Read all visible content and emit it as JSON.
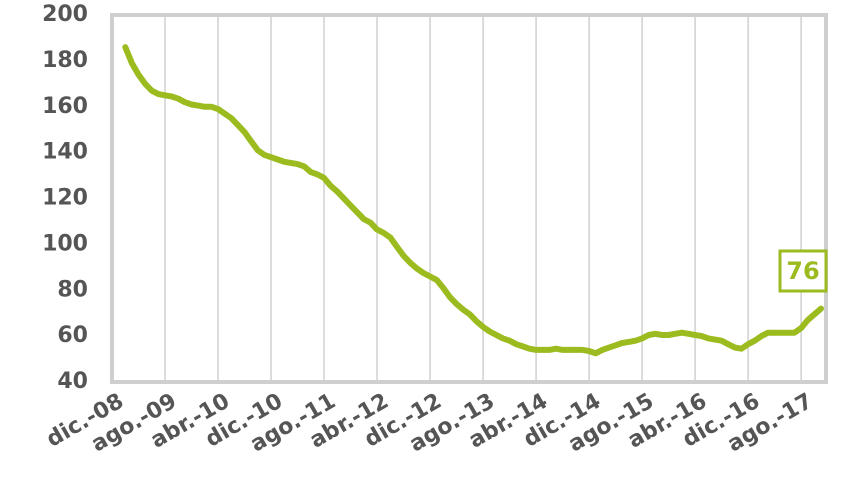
{
  "chart_data": {
    "type": "line",
    "categories": [
      "dic.-08",
      null,
      null,
      null,
      null,
      null,
      null,
      null,
      "ago.-09",
      null,
      null,
      null,
      null,
      null,
      null,
      null,
      "abr.-10",
      null,
      null,
      null,
      null,
      null,
      null,
      null,
      "dic.-10",
      null,
      null,
      null,
      null,
      null,
      null,
      null,
      "ago.-11",
      null,
      null,
      null,
      null,
      null,
      null,
      null,
      "abr.-12",
      null,
      null,
      null,
      null,
      null,
      null,
      null,
      "dic.-12",
      null,
      null,
      null,
      null,
      null,
      null,
      null,
      "ago.-13",
      null,
      null,
      null,
      null,
      null,
      null,
      null,
      "abr.-14",
      null,
      null,
      null,
      null,
      null,
      null,
      null,
      "dic.-14",
      null,
      null,
      null,
      null,
      null,
      null,
      null,
      "ago.-15",
      null,
      null,
      null,
      null,
      null,
      null,
      null,
      "abr.-16",
      null,
      null,
      null,
      null,
      null,
      null,
      null,
      "dic.-16",
      null,
      null,
      null,
      null,
      null,
      null,
      null,
      "ago.-17",
      null,
      null,
      null
    ],
    "values": [
      null,
      null,
      186,
      179,
      174,
      170,
      167,
      165.5,
      165,
      164.5,
      163.5,
      162,
      161,
      160.5,
      160,
      160,
      159,
      157,
      155,
      152,
      149,
      145,
      141,
      139,
      138,
      137,
      136,
      135.5,
      135,
      134,
      131.5,
      130.5,
      129,
      125.5,
      123,
      120,
      117,
      114,
      111,
      109.5,
      106.5,
      105,
      103,
      99,
      95,
      92,
      89.5,
      87.5,
      86,
      84.5,
      81,
      77,
      74,
      71.5,
      69.5,
      66.5,
      64,
      62,
      60.5,
      59,
      58,
      56.5,
      55.5,
      54.5,
      54,
      54,
      54,
      54.5,
      54,
      54,
      54,
      54,
      53.5,
      52.5,
      54,
      55,
      56,
      57,
      57.5,
      58,
      59,
      60.5,
      61,
      60.5,
      60.5,
      61,
      61.5,
      61,
      60.5,
      60,
      59,
      58.5,
      58,
      56.5,
      55,
      54.5,
      56.5,
      58,
      60,
      61.5,
      61.5,
      61.5,
      61.5,
      61.5,
      63.5,
      67,
      69.5,
      72
    ],
    "color": "#9bbb1f",
    "ylim": [
      40,
      200
    ],
    "yticks": [
      40,
      60,
      80,
      100,
      120,
      140,
      160,
      180,
      200
    ],
    "grid": true,
    "annotation": "76"
  }
}
